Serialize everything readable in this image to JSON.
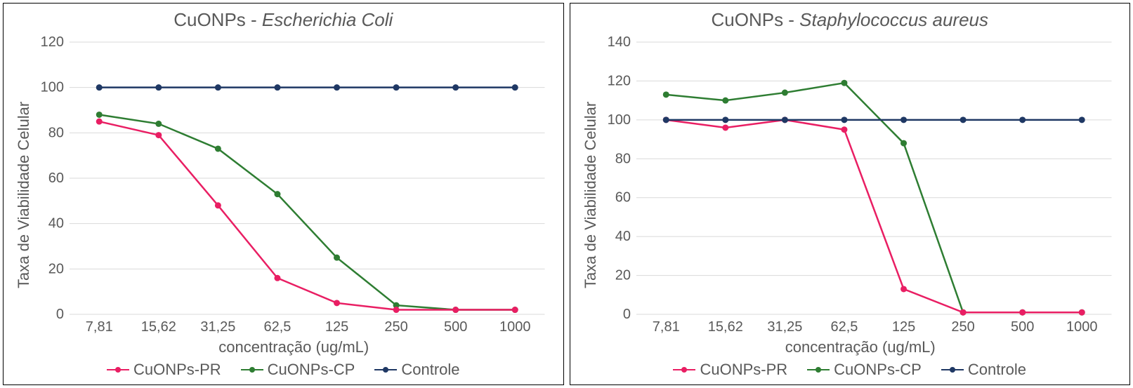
{
  "colors": {
    "border": "#000000",
    "text": "#595959",
    "gridline": "#d9d9d9",
    "axis": "#d9d9d9",
    "background": "#ffffff"
  },
  "series_style": {
    "pr": {
      "color": "#e91e63",
      "marker": "circle",
      "marker_size": 6,
      "line_width": 2.5
    },
    "cp": {
      "color": "#2e7d32",
      "marker": "circle",
      "marker_size": 6,
      "line_width": 2.5
    },
    "ctrl": {
      "color": "#1f3864",
      "marker": "circle",
      "marker_size": 6,
      "line_width": 2.5
    }
  },
  "legend_labels": {
    "pr": "CuONPs-PR",
    "cp": "CuONPs-CP",
    "ctrl": "Controle"
  },
  "charts": [
    {
      "type": "line",
      "title_prefix": "CuONPs - ",
      "title_organism": "Escherichia Coli",
      "ylabel": "Taxa de Viabilidade Celular",
      "xlabel": "concentração (ug/mL)",
      "categories": [
        "7,81",
        "15,62",
        "31,25",
        "62,5",
        "125",
        "250",
        "500",
        "1000"
      ],
      "ylim": [
        0,
        120
      ],
      "ytick_step": 20,
      "yticks": [
        0,
        20,
        40,
        60,
        80,
        100,
        120
      ],
      "series": {
        "pr": [
          85,
          79,
          48,
          16,
          5,
          2,
          2,
          2
        ],
        "cp": [
          88,
          84,
          73,
          53,
          25,
          4,
          2,
          2
        ],
        "ctrl": [
          100,
          100,
          100,
          100,
          100,
          100,
          100,
          100
        ]
      }
    },
    {
      "type": "line",
      "title_prefix": "CuONPs - ",
      "title_organism": "Staphylococcus aureus",
      "ylabel": "Taxa de Viabilidade Celular",
      "xlabel": "concentração (ug/mL)",
      "categories": [
        "7,81",
        "15,62",
        "31,25",
        "62,5",
        "125",
        "250",
        "500",
        "1000"
      ],
      "ylim": [
        0,
        140
      ],
      "ytick_step": 20,
      "yticks": [
        0,
        20,
        40,
        60,
        80,
        100,
        120,
        140
      ],
      "series": {
        "pr": [
          100,
          96,
          100,
          95,
          13,
          1,
          1,
          1
        ],
        "cp": [
          113,
          110,
          114,
          119,
          88,
          1,
          1,
          1
        ],
        "ctrl": [
          100,
          100,
          100,
          100,
          100,
          100,
          100,
          100
        ]
      }
    }
  ]
}
